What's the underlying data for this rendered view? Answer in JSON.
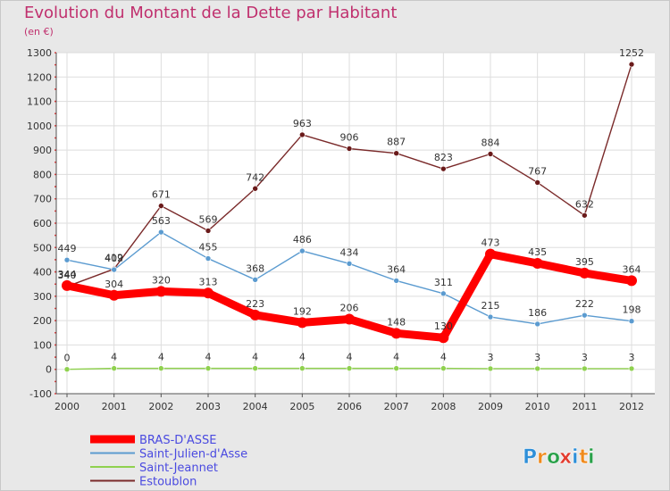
{
  "title": "Evolution du Montant de la Dette par Habitant",
  "subtitle": "(en €)",
  "logo": {
    "text": "Proxiti",
    "letters": [
      "P",
      "r",
      "o",
      "x",
      "i",
      "t",
      "i"
    ],
    "colors": [
      "#2e8fd8",
      "#f08a1c",
      "#2aa14a",
      "#e23b2e",
      "#2e8fd8",
      "#f08a1c",
      "#2aa14a"
    ]
  },
  "chart_data": {
    "type": "line",
    "categories": [
      "2000",
      "2001",
      "2002",
      "2003",
      "2004",
      "2005",
      "2006",
      "2007",
      "2008",
      "2009",
      "2010",
      "2011",
      "2012"
    ],
    "ylim": [
      -100,
      1300
    ],
    "yticks": [
      -100,
      0,
      100,
      200,
      300,
      400,
      500,
      600,
      700,
      800,
      900,
      1000,
      1100,
      1200,
      1300
    ],
    "grid": true,
    "legend_position": "bottom-left",
    "series": [
      {
        "name": "BRAS-D'ASSE",
        "color": "#ff0000",
        "width": 9,
        "marker": "#ff0000",
        "values": [
          344,
          304,
          320,
          313,
          223,
          192,
          206,
          148,
          130,
          473,
          435,
          395,
          364
        ],
        "labels": [
          "344",
          "304",
          "320",
          "313",
          "223",
          "192",
          "206",
          "148",
          "130",
          "473",
          "435",
          "395",
          "364"
        ]
      },
      {
        "name": "Saint-Julien-d'Asse",
        "color": "#5b9bd0",
        "width": 1.4,
        "marker": "#5b9bd0",
        "values": [
          449,
          409,
          563,
          455,
          368,
          486,
          434,
          364,
          311,
          215,
          186,
          222,
          198
        ],
        "labels": [
          "449",
          "409",
          "563",
          "455",
          "368",
          "486",
          "434",
          "364",
          "311",
          "215",
          "186",
          "222",
          "198"
        ]
      },
      {
        "name": "Saint-Jeannet",
        "color": "#8fd14f",
        "width": 1.4,
        "marker": "#8fd14f",
        "values": [
          0,
          4,
          4,
          4,
          4,
          4,
          4,
          4,
          4,
          3,
          3,
          3,
          3
        ],
        "labels": [
          "0",
          "4",
          "4",
          "4",
          "4",
          "4",
          "4",
          "4",
          "4",
          "3",
          "3",
          "3",
          "3"
        ]
      },
      {
        "name": "Estoublon",
        "color": "#7a2a2a",
        "width": 1.4,
        "marker": "#6a1a1a",
        "values": [
          340,
          412,
          671,
          569,
          742,
          963,
          906,
          887,
          823,
          884,
          767,
          632,
          1252
        ],
        "labels": [
          "340",
          "412",
          "671",
          "569",
          "742",
          "963",
          "906",
          "887",
          "823",
          "884",
          "767",
          "632",
          "1252"
        ]
      }
    ]
  }
}
